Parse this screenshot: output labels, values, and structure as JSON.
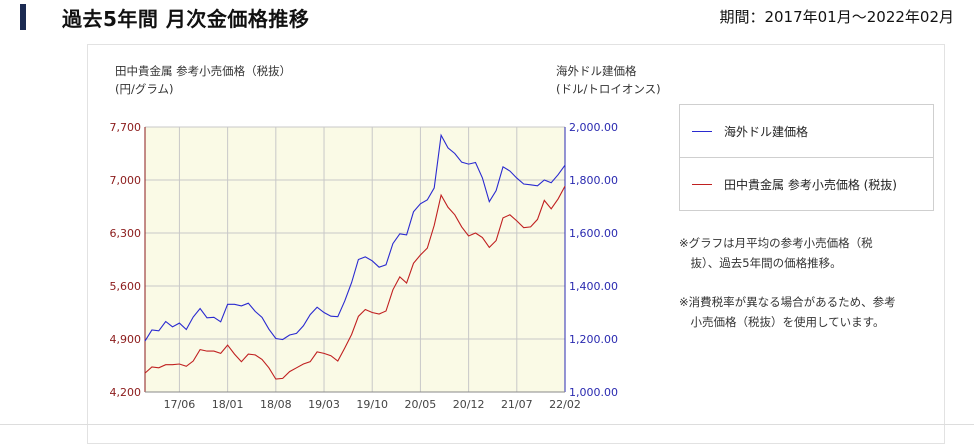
{
  "header": {
    "title": "過去5年間 月次金価格推移",
    "period": "期間：2017年01月〜2022年02月"
  },
  "axes": {
    "left_title_line1": "田中貴金属 参考小売価格（税抜）",
    "left_title_line2": "(円/グラム)",
    "right_title_line1": "海外ドル建価格",
    "right_title_line2": "(ドル/トロイオンス)"
  },
  "legend": {
    "usd_label": "海外ドル建価格",
    "jpy_label": "田中貴金属 参考小売価格 (税抜)"
  },
  "notes": {
    "note1_line1": "※グラフは月平均の参考小売価格（税",
    "note1_line2": "　抜）、過去5年間の価格推移。",
    "note2_line1": "※消費税率が異なる場合があるため、参考",
    "note2_line2": "　小売価格（税抜）を使用しています。"
  },
  "colors": {
    "usd_line": "#2a2ad0",
    "jpy_line": "#c02020",
    "plot_bg": "#fafae6",
    "left_axis_text": "#8b1a1a",
    "right_axis_text": "#2a2ab0"
  },
  "chart_data": {
    "type": "line",
    "x_tick_labels": [
      "17/06",
      "18/01",
      "18/08",
      "19/03",
      "19/10",
      "20/05",
      "20/12",
      "21/07",
      "22/02"
    ],
    "x_range": [
      "2017-01",
      "2022-02"
    ],
    "left_axis": {
      "ylim": [
        4200,
        7700
      ],
      "ticks": [
        "4,200",
        "4,900",
        "5,600",
        "6,300",
        "7,000",
        "7,700"
      ]
    },
    "right_axis": {
      "ylim": [
        1000,
        2000
      ],
      "ticks": [
        "1,000.00",
        "1,200.00",
        "1,400.00",
        "1,600.00",
        "1,800.00",
        "2,000.00"
      ]
    },
    "grid": true,
    "series": [
      {
        "name": "海外ドル建価格",
        "axis": "right",
        "values": [
          1192,
          1234,
          1231,
          1266,
          1246,
          1260,
          1236,
          1283,
          1315,
          1280,
          1282,
          1265,
          1331,
          1331,
          1325,
          1335,
          1304,
          1282,
          1237,
          1202,
          1198,
          1215,
          1221,
          1250,
          1292,
          1320,
          1300,
          1286,
          1284,
          1343,
          1413,
          1500,
          1510,
          1495,
          1471,
          1480,
          1560,
          1597,
          1593,
          1680,
          1710,
          1725,
          1770,
          1969,
          1921,
          1900,
          1867,
          1860,
          1866,
          1808,
          1718,
          1760,
          1850,
          1834,
          1807,
          1785,
          1782,
          1778,
          1800,
          1790,
          1820,
          1856
        ]
      },
      {
        "name": "田中貴金属 参考小売価格 (税抜)",
        "axis": "left",
        "values": [
          4450,
          4530,
          4520,
          4560,
          4560,
          4570,
          4540,
          4610,
          4760,
          4740,
          4740,
          4710,
          4820,
          4700,
          4600,
          4700,
          4690,
          4630,
          4520,
          4370,
          4380,
          4470,
          4520,
          4570,
          4600,
          4730,
          4710,
          4680,
          4610,
          4780,
          4960,
          5200,
          5290,
          5250,
          5230,
          5270,
          5550,
          5720,
          5640,
          5900,
          6010,
          6100,
          6400,
          6800,
          6640,
          6540,
          6380,
          6260,
          6300,
          6240,
          6110,
          6200,
          6500,
          6540,
          6460,
          6370,
          6380,
          6480,
          6730,
          6620,
          6750,
          6920
        ]
      }
    ]
  }
}
